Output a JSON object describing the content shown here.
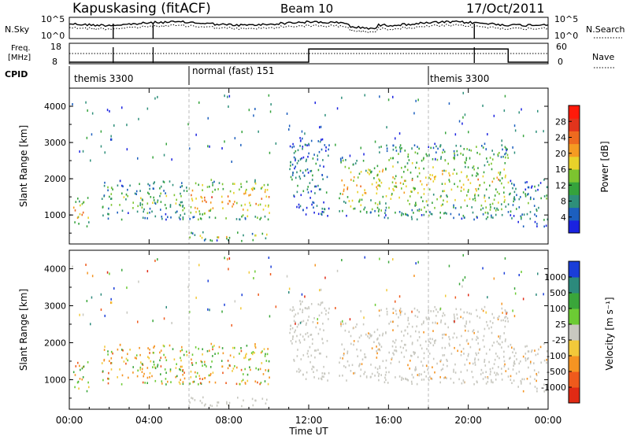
{
  "header": {
    "station": "Kapuskasing (fitACF)",
    "beam": "Beam 10",
    "date": "17/Oct/2011"
  },
  "noise_panel": {
    "left_label": "N.Sky",
    "right_label": "N.Search",
    "left_ticks": [
      "10^5",
      "10^0"
    ],
    "right_ticks": [
      "10^5",
      "10^0"
    ]
  },
  "freq_panel": {
    "left_label_line1": "Freq.",
    "left_label_line2": "[MHz]",
    "right_label": "Nave",
    "left_ticks": [
      "18",
      "8"
    ],
    "right_ticks": [
      "60",
      "0"
    ]
  },
  "cpid": {
    "label": "CPID",
    "segments": [
      {
        "name": "themis 3300",
        "start_hour": 0
      },
      {
        "name": "normal (fast) 151",
        "start_hour": 6
      },
      {
        "name": "themis 3300",
        "start_hour": 18
      }
    ]
  },
  "power_panel": {
    "ylabel": "Slant Range [km]",
    "yticks": [
      "1000",
      "2000",
      "3000",
      "4000"
    ],
    "colorbar_label": "Power [dB]",
    "colorbar_ticks": [
      "4",
      "8",
      "12",
      "16",
      "20",
      "24",
      "28"
    ],
    "colorbar_colors": [
      "#1a22e0",
      "#1c5fbe",
      "#2e8f7a",
      "#35a33c",
      "#7cc42f",
      "#e8d22a",
      "#f59b22",
      "#ee6a1f",
      "#e2341c",
      "#ff1a0a"
    ]
  },
  "velocity_panel": {
    "ylabel": "Slant Range [km]",
    "yticks": [
      "1000",
      "2000",
      "3000",
      "4000"
    ],
    "colorbar_label": "Velocity [m s⁻¹]",
    "colorbar_ticks": [
      "1000",
      "500",
      "100",
      "25",
      "-25",
      "-100",
      "-500",
      "-1000"
    ],
    "colorbar_colors": [
      "#1a3ed8",
      "#2c8a7c",
      "#3aa63a",
      "#6ccb34",
      "#c8c8c0",
      "#f2c93a",
      "#f59422",
      "#ef5a1c",
      "#e02a14"
    ]
  },
  "x_axis": {
    "label": "Time UT",
    "ticks": [
      "00:00",
      "04:00",
      "08:00",
      "12:00",
      "16:00",
      "20:00",
      "00:00"
    ]
  },
  "chart_data": {
    "type": "heatmap",
    "x_range_hours": [
      0,
      24
    ],
    "y_range_km": [
      200,
      4500
    ],
    "mode_change_hours": [
      6,
      18
    ],
    "nave_step": {
      "hours": [
        0,
        12,
        22,
        24
      ],
      "values": [
        0,
        40,
        0,
        0
      ]
    },
    "power_regions": [
      {
        "t0": 0.1,
        "t1": 1.0,
        "r0": 700,
        "r1": 1500,
        "level": 0.7
      },
      {
        "t0": 1.6,
        "t1": 6.0,
        "r0": 900,
        "r1": 2000,
        "level": 0.4
      },
      {
        "t0": 6.0,
        "t1": 10.0,
        "r0": 900,
        "r1": 2000,
        "level": 0.7
      },
      {
        "t0": 6.0,
        "t1": 10.0,
        "r0": 300,
        "r1": 550,
        "level": 0.5
      },
      {
        "t0": 11.0,
        "t1": 13.0,
        "r0": 1000,
        "r1": 3200,
        "level": 0.25
      },
      {
        "t0": 13.5,
        "t1": 15.5,
        "r0": 1000,
        "r1": 2600,
        "level": 0.6
      },
      {
        "t0": 15.5,
        "t1": 22.0,
        "r0": 900,
        "r1": 3000,
        "level": 0.55
      },
      {
        "t0": 22.0,
        "t1": 24.0,
        "r0": 700,
        "r1": 2000,
        "level": 0.3
      }
    ]
  }
}
